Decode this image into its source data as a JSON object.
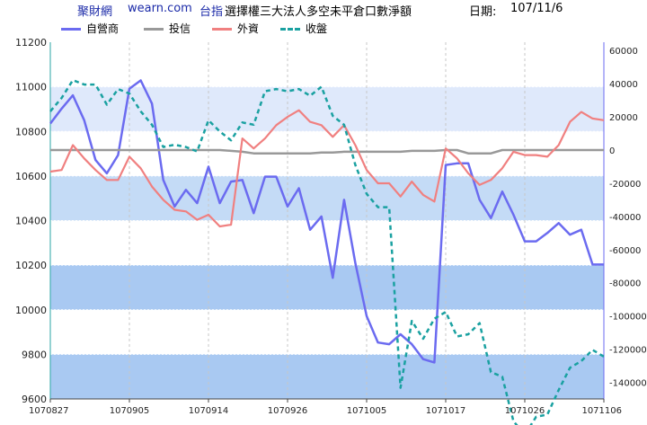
{
  "header": {
    "brand": "聚財網",
    "site": "wearn.com",
    "index": "台指",
    "title": "選擇權三大法人多空未平倉口數淨額",
    "date_label": "日期:",
    "date_value": "107/11/6"
  },
  "colors": {
    "dealer": "#6b6bf0",
    "trust": "#999999",
    "foreign": "#f08080",
    "close": "#1aa1a1",
    "band_light": "#dfe9fb",
    "band_mid": "#c4dbf6",
    "band_dark": "#a9c9f2"
  },
  "chart_data": {
    "type": "line",
    "legend_position": "top",
    "x": [
      "1070827",
      "1070828",
      "1070829",
      "1070830",
      "1070831",
      "1070903",
      "1070904",
      "1070905",
      "1070906",
      "1070907",
      "1070910",
      "1070911",
      "1070912",
      "1070913",
      "1070914",
      "1070917",
      "1070918",
      "1070919",
      "1070920",
      "1070921",
      "1070925",
      "1070926",
      "1070927",
      "1070928",
      "1071001",
      "1071002",
      "1071003",
      "1071004",
      "1071005",
      "1071008",
      "1071009",
      "1071011",
      "1071012",
      "1071015",
      "1071016",
      "1071017",
      "1071018",
      "1071019",
      "1071022",
      "1071023",
      "1071024",
      "1071025",
      "1071026",
      "1071029",
      "1071030",
      "1071031",
      "1071101",
      "1071102",
      "1071105",
      "1071106"
    ],
    "x_tick_labels": [
      "1070827",
      "1070905",
      "1070914",
      "1070926",
      "1071005",
      "1071017",
      "1071026",
      "1071106"
    ],
    "left_axis": {
      "min": 9600,
      "max": 11200,
      "ticks": [
        9600,
        9800,
        10000,
        10200,
        10400,
        10600,
        10800,
        11000,
        11200
      ]
    },
    "right_axis": {
      "min": -150000,
      "max": 65000,
      "ticks": [
        -140000,
        -120000,
        -100000,
        -80000,
        -60000,
        -40000,
        -20000,
        0,
        20000,
        40000,
        60000
      ]
    },
    "series": [
      {
        "name": "自營商",
        "axis": "right",
        "values": [
          16000,
          25000,
          33000,
          18000,
          -6000,
          -14000,
          -3000,
          37000,
          42000,
          28000,
          -18000,
          -34000,
          -24000,
          -32000,
          -10000,
          -32000,
          -19000,
          -18000,
          -38000,
          -16000,
          -16000,
          -34000,
          -23000,
          -48000,
          -40000,
          -77000,
          -30000,
          -68000,
          -100000,
          -116000,
          -117000,
          -111000,
          -117000,
          -126000,
          -128000,
          -9000,
          -8000,
          -8000,
          -30000,
          -41000,
          -25000,
          -39000,
          -55000,
          -55000,
          -50000,
          -44000,
          -51000,
          -48000,
          -69000,
          -69000
        ]
      },
      {
        "name": "投信",
        "axis": "right",
        "values": [
          0,
          0,
          0,
          0,
          0,
          0,
          0,
          0,
          0,
          0,
          0,
          0,
          0,
          0,
          0,
          0,
          -500,
          -1000,
          -2000,
          -2000,
          -2000,
          -2000,
          -2000,
          -2000,
          -1500,
          -1500,
          -1000,
          -1000,
          -1000,
          -1000,
          -1000,
          -1000,
          -500,
          -500,
          -500,
          0,
          0,
          -2000,
          -2000,
          -2000,
          0,
          0,
          0,
          0,
          0,
          0,
          0,
          0,
          0,
          0
        ]
      },
      {
        "name": "外資",
        "axis": "right",
        "values": [
          -13000,
          -12000,
          3000,
          -5000,
          -12000,
          -18000,
          -18000,
          -4000,
          -11000,
          -22000,
          -30000,
          -36000,
          -37000,
          -42000,
          -39000,
          -46000,
          -45000,
          7000,
          1000,
          7000,
          15000,
          20000,
          24000,
          17000,
          15000,
          8000,
          15000,
          3000,
          -12000,
          -20000,
          -20000,
          -28000,
          -19000,
          -27000,
          -31000,
          1000,
          -5000,
          -14000,
          -21000,
          -18000,
          -11000,
          -1000,
          -3000,
          -3000,
          -4000,
          3000,
          17000,
          23000,
          19000,
          18000
        ]
      },
      {
        "name": "收盤",
        "axis": "left",
        "values": [
          10890,
          10950,
          11030,
          11010,
          11010,
          10920,
          10990,
          10970,
          10890,
          10830,
          10730,
          10740,
          10730,
          10710,
          10850,
          10800,
          10760,
          10840,
          10830,
          10980,
          10990,
          10980,
          10990,
          10960,
          11000,
          10870,
          10830,
          10650,
          10520,
          10460,
          10460,
          9650,
          9950,
          9870,
          9960,
          9990,
          9880,
          9890,
          9940,
          9720,
          9700,
          9500,
          9440,
          9520,
          9530,
          9640,
          9740,
          9770,
          9820,
          9790
        ]
      }
    ]
  }
}
